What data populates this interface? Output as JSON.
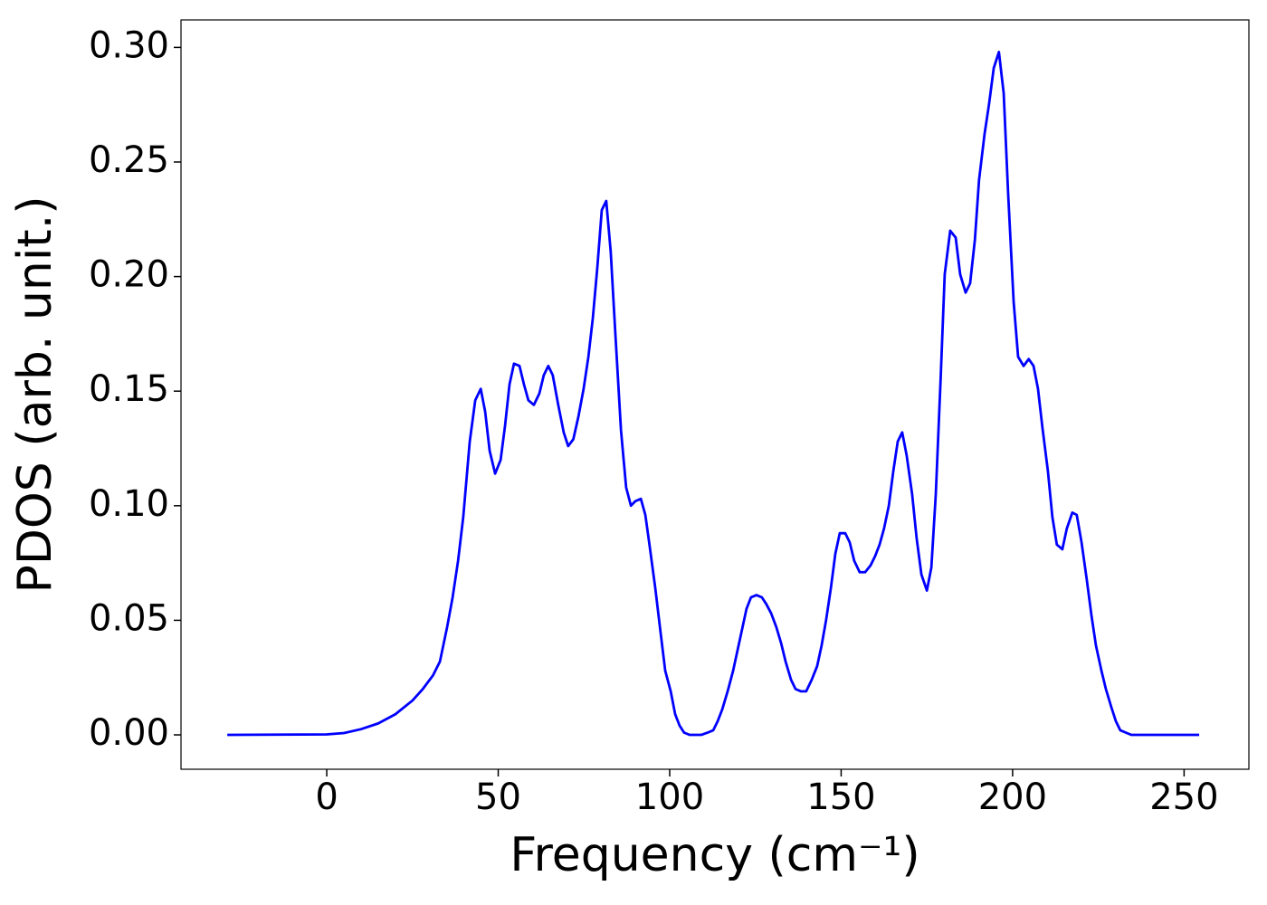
{
  "chart_data": {
    "type": "line",
    "xlabel": "Frequency (cm⁻¹)",
    "ylabel": "PDOS (arb. unit.)",
    "color": "#0000ff",
    "x": [
      -29,
      0,
      5,
      10,
      15,
      20,
      25,
      28,
      31,
      33.0,
      35.1,
      36.7,
      38.3,
      39.8,
      41.7,
      43.3,
      44.9,
      46.2,
      47.5,
      49.1,
      50.7,
      52.0,
      53.3,
      54.6,
      56.2,
      57.5,
      58.8,
      60.4,
      62.0,
      63.3,
      64.6,
      65.9,
      67.5,
      69.1,
      70.4,
      71.9,
      73.4,
      74.9,
      76.3,
      77.6,
      78.9,
      80.2,
      81.5,
      82.8,
      84.2,
      85.8,
      87.3,
      88.7,
      90.0,
      91.6,
      92.9,
      94.2,
      95.8,
      97.4,
      98.7,
      100.3,
      101.6,
      102.9,
      104.2,
      105.8,
      109.2,
      111.1,
      112.7,
      114.0,
      115.3,
      116.9,
      118.5,
      119.8,
      121.1,
      122.4,
      123.7,
      125.3,
      126.9,
      128.2,
      129.6,
      131.1,
      132.5,
      133.8,
      135.4,
      136.7,
      138.3,
      139.8,
      141.4,
      143.0,
      144.3,
      145.6,
      147.0,
      148.3,
      149.6,
      151.2,
      152.5,
      153.8,
      155.4,
      157.0,
      158.6,
      159.9,
      161.2,
      162.5,
      163.9,
      165.2,
      166.5,
      167.8,
      169.1,
      170.7,
      172.0,
      173.4,
      175.0,
      176.3,
      177.6,
      179.0,
      180.2,
      181.8,
      183.4,
      184.7,
      186.3,
      187.6,
      189.0,
      190.2,
      191.8,
      193.1,
      194.5,
      196.0,
      197.4,
      198.7,
      200.3,
      201.6,
      203.2,
      204.7,
      206.1,
      207.4,
      208.7,
      210.3,
      211.6,
      212.9,
      214.5,
      215.8,
      217.4,
      218.7,
      220.1,
      221.6,
      223.0,
      224.3,
      225.9,
      227.2,
      228.8,
      230.1,
      231.4,
      233.0,
      234.6,
      254.4
    ],
    "values": [
      0,
      0.0002,
      0.0008,
      0.0025,
      0.005,
      0.009,
      0.015,
      0.02,
      0.026,
      0.032,
      0.047,
      0.06,
      0.076,
      0.095,
      0.128,
      0.146,
      0.151,
      0.141,
      0.124,
      0.114,
      0.12,
      0.135,
      0.153,
      0.162,
      0.161,
      0.153,
      0.146,
      0.144,
      0.149,
      0.157,
      0.161,
      0.157,
      0.144,
      0.132,
      0.126,
      0.129,
      0.139,
      0.151,
      0.165,
      0.182,
      0.204,
      0.229,
      0.233,
      0.211,
      0.174,
      0.133,
      0.108,
      0.1,
      0.102,
      0.103,
      0.096,
      0.082,
      0.064,
      0.044,
      0.028,
      0.019,
      0.009,
      0.004,
      0.001,
      0,
      0,
      0.001,
      0.002,
      0.006,
      0.011,
      0.019,
      0.028,
      0.037,
      0.046,
      0.055,
      0.06,
      0.061,
      0.06,
      0.057,
      0.053,
      0.047,
      0.04,
      0.032,
      0.024,
      0.02,
      0.019,
      0.019,
      0.024,
      0.03,
      0.039,
      0.05,
      0.064,
      0.079,
      0.088,
      0.088,
      0.084,
      0.076,
      0.071,
      0.071,
      0.074,
      0.078,
      0.083,
      0.09,
      0.1,
      0.115,
      0.128,
      0.132,
      0.122,
      0.105,
      0.086,
      0.07,
      0.063,
      0.073,
      0.105,
      0.155,
      0.201,
      0.22,
      0.217,
      0.201,
      0.193,
      0.197,
      0.216,
      0.242,
      0.262,
      0.275,
      0.291,
      0.298,
      0.28,
      0.236,
      0.189,
      0.165,
      0.161,
      0.164,
      0.161,
      0.151,
      0.134,
      0.115,
      0.095,
      0.083,
      0.081,
      0.09,
      0.097,
      0.096,
      0.084,
      0.068,
      0.052,
      0.039,
      0.028,
      0.02,
      0.012,
      0.006,
      0.002,
      0.001,
      0,
      0
    ],
    "xlim": [
      -42.5,
      268.9
    ],
    "ylim": [
      -0.015,
      0.312
    ],
    "xticks": [
      0,
      50,
      100,
      150,
      200,
      250
    ],
    "yticks": [
      {
        "value": 0,
        "label": "0.00"
      },
      {
        "value": 0.05,
        "label": "0.05"
      },
      {
        "value": 0.1,
        "label": "0.10"
      },
      {
        "value": 0.15,
        "label": "0.15"
      },
      {
        "value": 0.2,
        "label": "0.20"
      },
      {
        "value": 0.25,
        "label": "0.25"
      },
      {
        "value": 0.3,
        "label": "0.30"
      }
    ]
  }
}
